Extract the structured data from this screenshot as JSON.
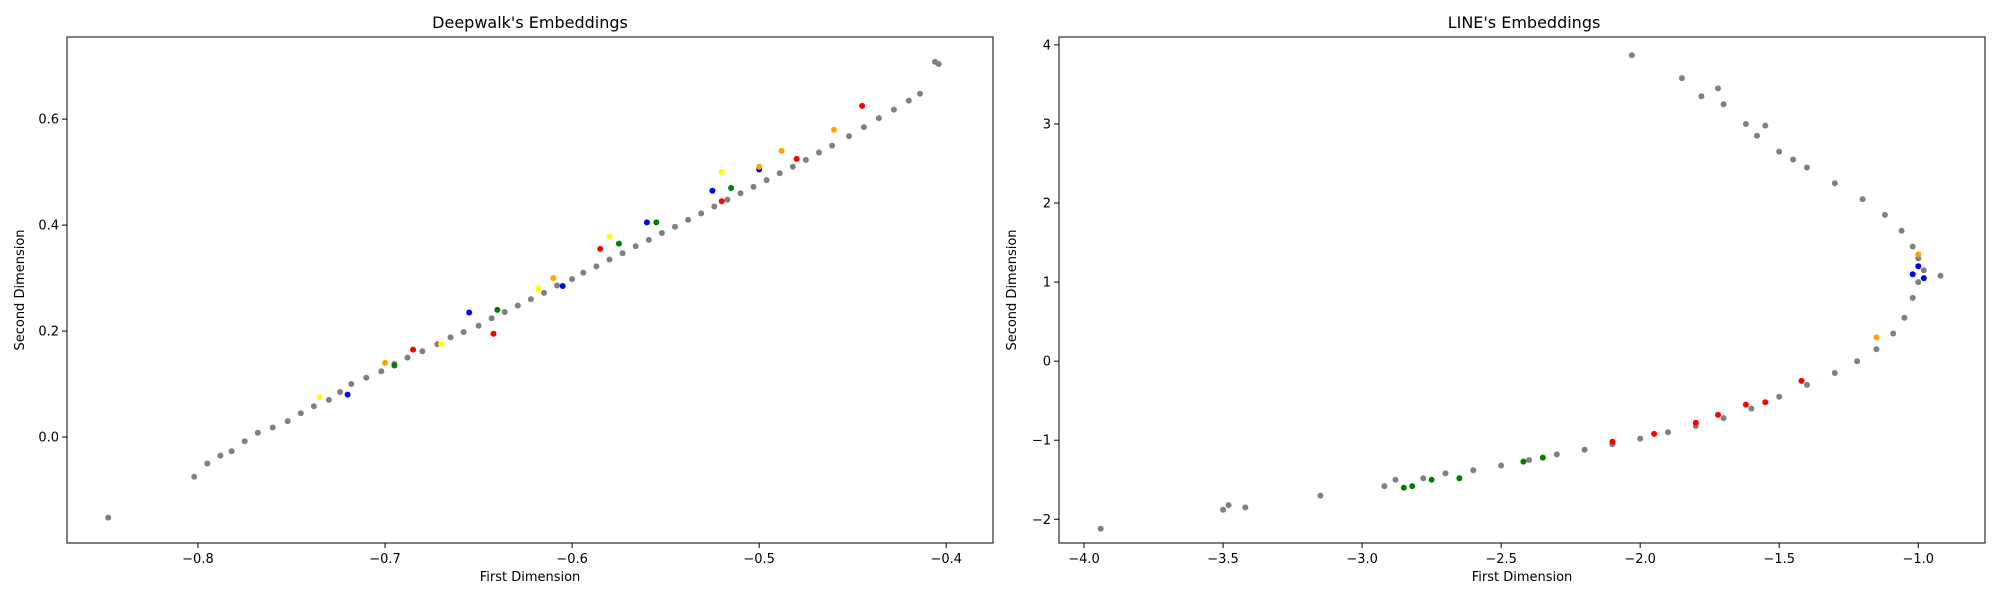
{
  "chart_data": [
    {
      "type": "scatter",
      "title": "Deepwalk's Embeddings",
      "xlabel": "First Dimension",
      "ylabel": "Second Dimension",
      "xlim": [
        -0.87,
        -0.375
      ],
      "ylim": [
        -0.2,
        0.755
      ],
      "x_ticks": [
        -0.8,
        -0.7,
        -0.6,
        -0.5,
        -0.4
      ],
      "x_tick_labels": [
        "−0.8",
        "−0.7",
        "−0.6",
        "−0.5",
        "−0.4"
      ],
      "y_ticks": [
        0.0,
        0.2,
        0.4,
        0.6
      ],
      "y_tick_labels": [
        "0.0",
        "0.2",
        "0.4",
        "0.6"
      ],
      "grid": false,
      "base_color": "#808080",
      "series": [
        {
          "color": "#808080",
          "points": [
            [
              -0.848,
              -0.152
            ],
            [
              -0.802,
              -0.075
            ],
            [
              -0.795,
              -0.05
            ],
            [
              -0.788,
              -0.035
            ],
            [
              -0.782,
              -0.027
            ],
            [
              -0.775,
              -0.008
            ],
            [
              -0.768,
              0.008
            ],
            [
              -0.76,
              0.018
            ],
            [
              -0.752,
              0.03
            ],
            [
              -0.745,
              0.045
            ],
            [
              -0.738,
              0.058
            ],
            [
              -0.73,
              0.07
            ],
            [
              -0.724,
              0.085
            ],
            [
              -0.718,
              0.1
            ],
            [
              -0.71,
              0.112
            ],
            [
              -0.702,
              0.124
            ],
            [
              -0.695,
              0.138
            ],
            [
              -0.688,
              0.15
            ],
            [
              -0.68,
              0.162
            ],
            [
              -0.672,
              0.175
            ],
            [
              -0.665,
              0.188
            ],
            [
              -0.658,
              0.198
            ],
            [
              -0.65,
              0.21
            ],
            [
              -0.643,
              0.224
            ],
            [
              -0.636,
              0.236
            ],
            [
              -0.629,
              0.248
            ],
            [
              -0.622,
              0.26
            ],
            [
              -0.615,
              0.272
            ],
            [
              -0.608,
              0.286
            ],
            [
              -0.6,
              0.298
            ],
            [
              -0.594,
              0.31
            ],
            [
              -0.587,
              0.322
            ],
            [
              -0.58,
              0.335
            ],
            [
              -0.573,
              0.347
            ],
            [
              -0.566,
              0.36
            ],
            [
              -0.559,
              0.372
            ],
            [
              -0.552,
              0.385
            ],
            [
              -0.545,
              0.397
            ],
            [
              -0.538,
              0.41
            ],
            [
              -0.531,
              0.422
            ],
            [
              -0.524,
              0.435
            ],
            [
              -0.517,
              0.448
            ],
            [
              -0.51,
              0.46
            ],
            [
              -0.503,
              0.472
            ],
            [
              -0.496,
              0.485
            ],
            [
              -0.489,
              0.498
            ],
            [
              -0.482,
              0.51
            ],
            [
              -0.475,
              0.523
            ],
            [
              -0.468,
              0.537
            ],
            [
              -0.461,
              0.55
            ],
            [
              -0.452,
              0.568
            ],
            [
              -0.444,
              0.585
            ],
            [
              -0.436,
              0.602
            ],
            [
              -0.428,
              0.618
            ],
            [
              -0.42,
              0.635
            ],
            [
              -0.414,
              0.648
            ],
            [
              -0.406,
              0.708
            ],
            [
              -0.404,
              0.704
            ]
          ]
        },
        {
          "color": "#ff0000",
          "points": [
            [
              -0.685,
              0.165
            ],
            [
              -0.642,
              0.195
            ],
            [
              -0.585,
              0.355
            ],
            [
              -0.52,
              0.445
            ],
            [
              -0.48,
              0.525
            ],
            [
              -0.445,
              0.625
            ]
          ]
        },
        {
          "color": "#0000ff",
          "points": [
            [
              -0.72,
              0.08
            ],
            [
              -0.655,
              0.235
            ],
            [
              -0.605,
              0.285
            ],
            [
              -0.56,
              0.405
            ],
            [
              -0.525,
              0.465
            ],
            [
              -0.5,
              0.505
            ]
          ]
        },
        {
          "color": "#ffff00",
          "points": [
            [
              -0.735,
              0.075
            ],
            [
              -0.67,
              0.175
            ],
            [
              -0.618,
              0.28
            ],
            [
              -0.58,
              0.378
            ],
            [
              -0.52,
              0.5
            ]
          ]
        },
        {
          "color": "#008000",
          "points": [
            [
              -0.695,
              0.135
            ],
            [
              -0.64,
              0.24
            ],
            [
              -0.575,
              0.365
            ],
            [
              -0.555,
              0.405
            ],
            [
              -0.515,
              0.47
            ]
          ]
        },
        {
          "color": "#ffa500",
          "points": [
            [
              -0.7,
              0.14
            ],
            [
              -0.61,
              0.3
            ],
            [
              -0.5,
              0.51
            ],
            [
              -0.46,
              0.58
            ],
            [
              -0.488,
              0.54
            ]
          ]
        }
      ]
    },
    {
      "type": "scatter",
      "title": "LINE's Embeddings",
      "xlabel": "First Dimension",
      "ylabel": "Second Dimension",
      "xlim": [
        -4.09,
        -0.76
      ],
      "ylim": [
        -2.3,
        4.1
      ],
      "x_ticks": [
        -4.0,
        -3.5,
        -3.0,
        -2.5,
        -2.0,
        -1.5,
        -1.0
      ],
      "x_tick_labels": [
        "−4.0",
        "−3.5",
        "−3.0",
        "−2.5",
        "−2.0",
        "−1.5",
        "−1.0"
      ],
      "y_ticks": [
        -2,
        -1,
        0,
        1,
        2,
        3,
        4
      ],
      "y_tick_labels": [
        "−2",
        "−1",
        "0",
        "1",
        "2",
        "3",
        "4"
      ],
      "grid": false,
      "base_color": "#808080",
      "series": [
        {
          "color": "#808080",
          "points": [
            [
              -3.94,
              -2.12
            ],
            [
              -3.5,
              -1.88
            ],
            [
              -3.48,
              -1.82
            ],
            [
              -3.42,
              -1.85
            ],
            [
              -3.15,
              -1.7
            ],
            [
              -2.92,
              -1.58
            ],
            [
              -2.88,
              -1.5
            ],
            [
              -2.78,
              -1.48
            ],
            [
              -2.7,
              -1.42
            ],
            [
              -2.6,
              -1.38
            ],
            [
              -2.5,
              -1.32
            ],
            [
              -2.4,
              -1.25
            ],
            [
              -2.3,
              -1.18
            ],
            [
              -2.2,
              -1.12
            ],
            [
              -2.1,
              -1.05
            ],
            [
              -2.0,
              -0.98
            ],
            [
              -1.9,
              -0.9
            ],
            [
              -1.8,
              -0.82
            ],
            [
              -1.7,
              -0.72
            ],
            [
              -1.6,
              -0.6
            ],
            [
              -1.5,
              -0.45
            ],
            [
              -1.4,
              -0.3
            ],
            [
              -1.3,
              -0.15
            ],
            [
              -1.22,
              0.0
            ],
            [
              -1.15,
              0.15
            ],
            [
              -1.09,
              0.35
            ],
            [
              -1.05,
              0.55
            ],
            [
              -1.02,
              0.8
            ],
            [
              -1.0,
              1.0
            ],
            [
              -0.98,
              1.15
            ],
            [
              -0.92,
              1.08
            ],
            [
              -1.0,
              1.3
            ],
            [
              -1.02,
              1.45
            ],
            [
              -1.06,
              1.65
            ],
            [
              -1.12,
              1.85
            ],
            [
              -1.2,
              2.05
            ],
            [
              -1.3,
              2.25
            ],
            [
              -1.4,
              2.45
            ],
            [
              -1.5,
              2.65
            ],
            [
              -1.58,
              2.85
            ],
            [
              -1.62,
              3.0
            ],
            [
              -1.7,
              3.25
            ],
            [
              -1.72,
              3.45
            ],
            [
              -1.78,
              3.35
            ],
            [
              -1.85,
              3.58
            ],
            [
              -2.03,
              3.87
            ],
            [
              -1.55,
              2.98
            ],
            [
              -1.45,
              2.55
            ]
          ]
        },
        {
          "color": "#ff0000",
          "points": [
            [
              -2.1,
              -1.02
            ],
            [
              -1.95,
              -0.92
            ],
            [
              -1.8,
              -0.78
            ],
            [
              -1.72,
              -0.68
            ],
            [
              -1.62,
              -0.55
            ],
            [
              -1.55,
              -0.52
            ],
            [
              -1.42,
              -0.25
            ]
          ]
        },
        {
          "color": "#008000",
          "points": [
            [
              -2.85,
              -1.6
            ],
            [
              -2.82,
              -1.58
            ],
            [
              -2.75,
              -1.5
            ],
            [
              -2.65,
              -1.48
            ],
            [
              -2.42,
              -1.27
            ],
            [
              -2.35,
              -1.22
            ]
          ]
        },
        {
          "color": "#0000ff",
          "points": [
            [
              -1.0,
              1.2
            ],
            [
              -0.98,
              1.05
            ],
            [
              -1.02,
              1.1
            ]
          ]
        },
        {
          "color": "#ffa500",
          "points": [
            [
              -1.0,
              1.35
            ],
            [
              -1.15,
              0.3
            ]
          ]
        }
      ]
    }
  ]
}
